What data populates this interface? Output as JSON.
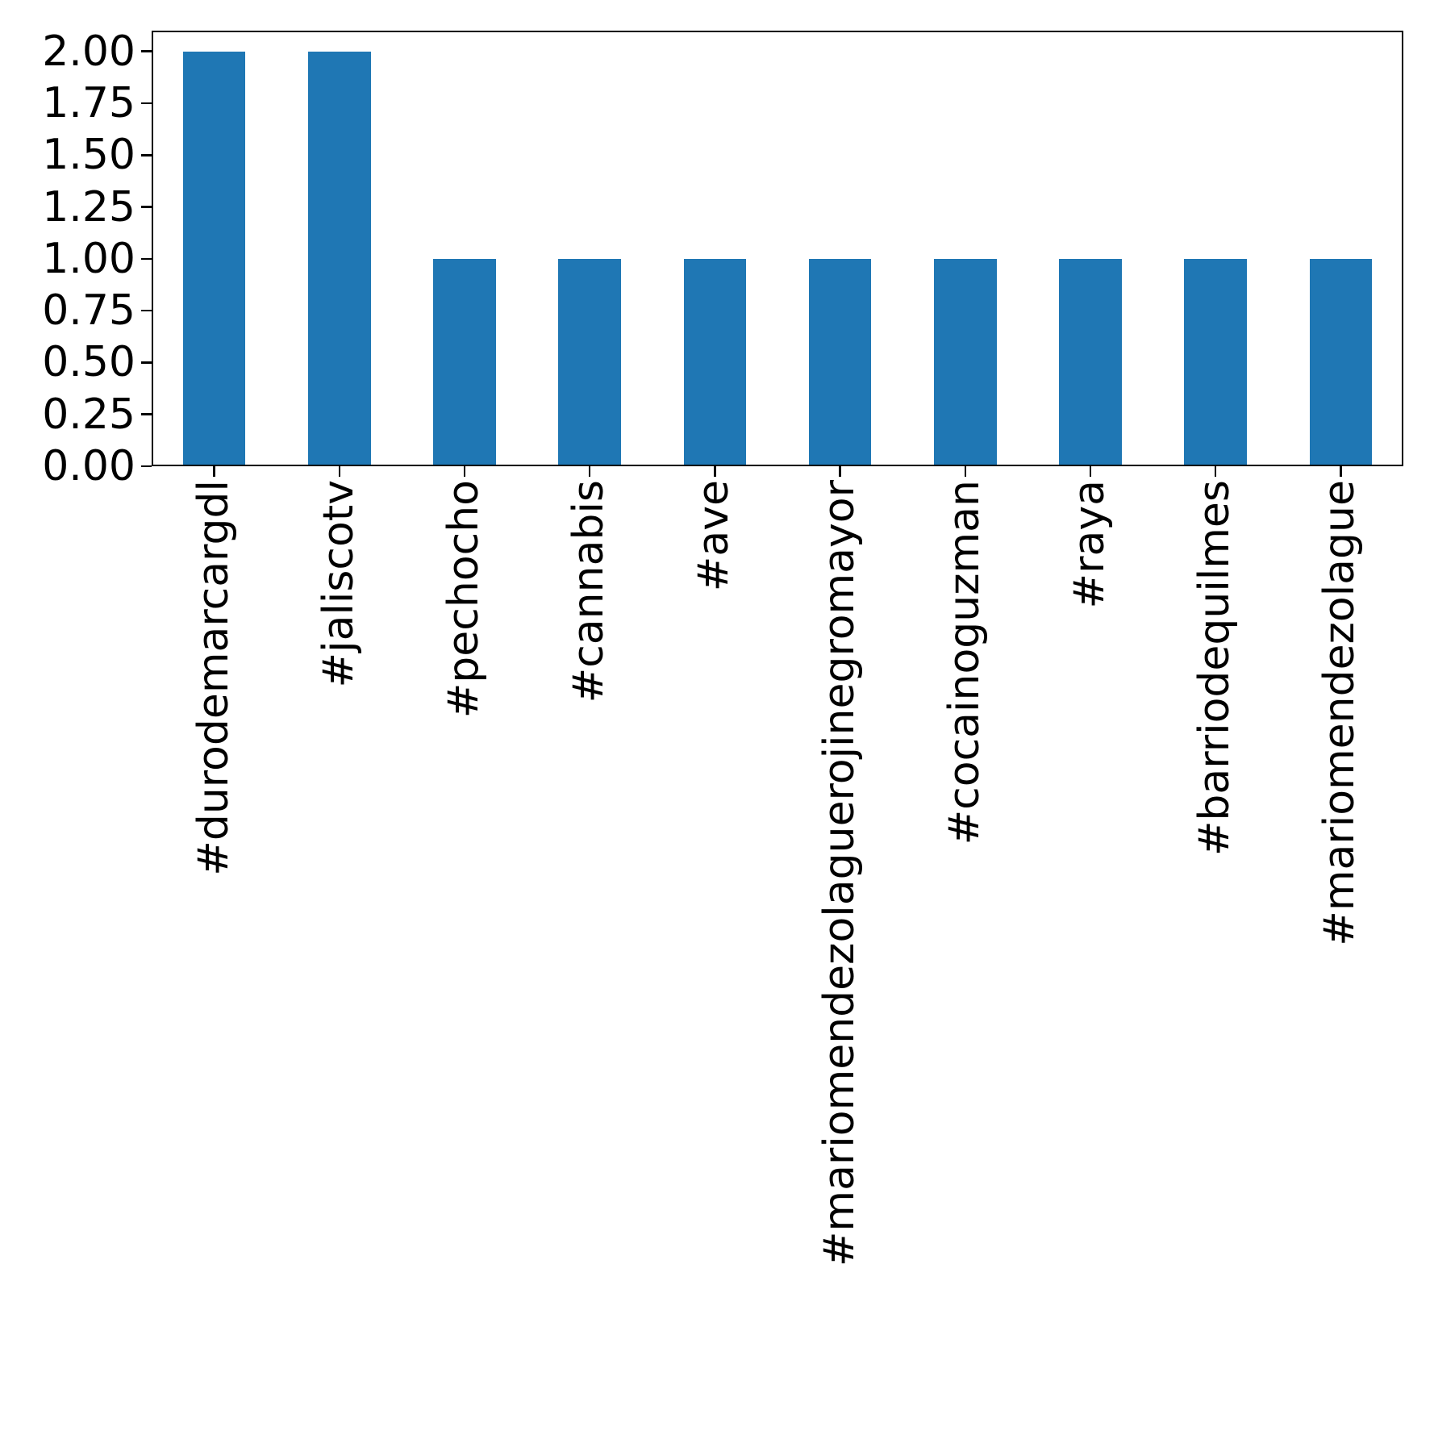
{
  "chart_data": {
    "type": "bar",
    "title": "",
    "xlabel": "",
    "ylabel": "",
    "categories": [
      "#durodemarcargdl",
      "#jaliscotv",
      "#pechocho",
      "#cannabis",
      "#ave",
      "#mariomendezolaguerojinegromayor",
      "#cocainoguzman",
      "#raya",
      "#barriodequilmes",
      "#mariomendezolague"
    ],
    "values": [
      2,
      2,
      1,
      1,
      1,
      1,
      1,
      1,
      1,
      1
    ],
    "ylim": [
      0,
      2.1
    ],
    "yticks": [
      0,
      0.25,
      0.5,
      0.75,
      1.0,
      1.25,
      1.5,
      1.75,
      2.0
    ],
    "ytick_labels": [
      "0.00",
      "0.25",
      "0.50",
      "0.75",
      "1.00",
      "1.25",
      "1.50",
      "1.75",
      "2.00"
    ],
    "xtick_label_rotation": 90,
    "bar_color": "#1f77b4",
    "bar_width_fraction": 0.5,
    "grid": false,
    "legend": "none"
  }
}
